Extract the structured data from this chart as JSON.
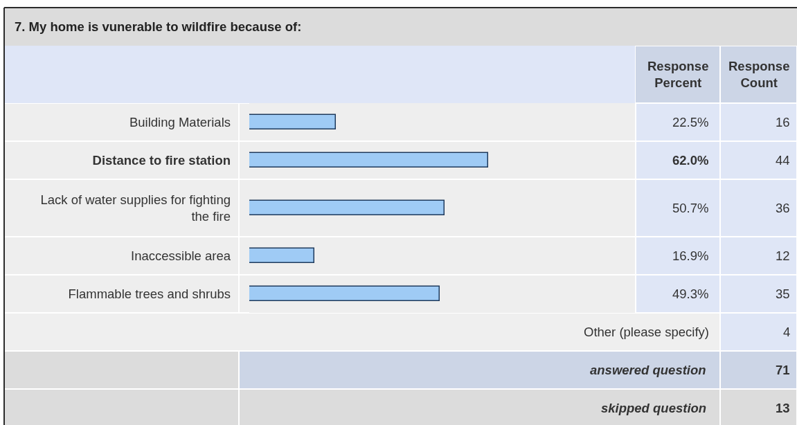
{
  "chart_data": {
    "type": "bar",
    "orientation": "horizontal",
    "title": "7. My home is vunerable to wildfire because of:",
    "categories": [
      "Building Materials",
      "Distance to fire station",
      "Lack of water supplies for fighting the fire",
      "Inaccessible area",
      "Flammable trees and shrubs"
    ],
    "values": [
      22.5,
      62.0,
      50.7,
      16.9,
      49.3
    ],
    "color": "#9fcbf5",
    "xlim": [
      0,
      100
    ],
    "value_labels": [
      "22.5%",
      "62.0%",
      "50.7%",
      "16.9%",
      "49.3%"
    ],
    "tick_labels": "y",
    "grid": "y",
    "annotations": [
      "Response Percent",
      "Response Count",
      "16",
      "44",
      "36",
      "12",
      "35",
      "Other (please specify)",
      "4",
      "answered question",
      "71",
      "skipped question",
      "13"
    ]
  }
}
